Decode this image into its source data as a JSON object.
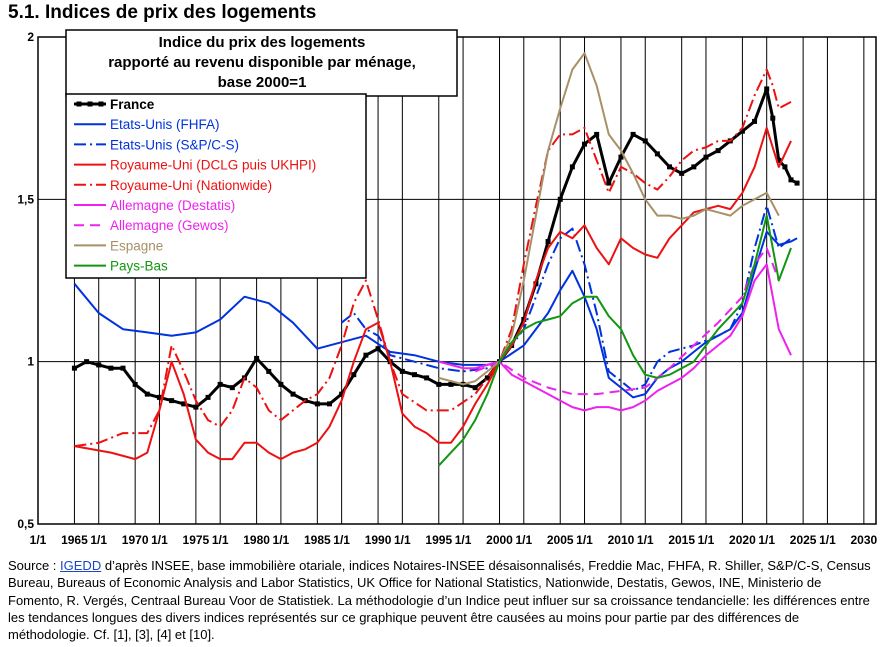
{
  "page_title": "5.1. Indices de prix des logements",
  "source": {
    "prefix": "Source : ",
    "link": "IGEDD",
    "text": " d’après INSEE, base immobilière otariale, indices Notaires-INSEE désaisonnalisés, Freddie Mac, FHFA, R. Shiller, S&P/C-S, Census Bureau, Bureaus of Economic Analysis and Labor Statistics, UK Office for National Statistics, Nationwide, Destatis, Gewos, INE, Ministerio de Fomento, R. Vergés, Centraal Bureau Voor de Statistiek.  La méthodologie d’un Indice peut influer sur sa croissance tendancielle: les différences entre les tendances longues des divers indices représentés sur ce graphique peuvent être causées au moins pour partie par des différences de méthodologie. Cf. [1], [3], [4] et [10]."
  },
  "chart_data": {
    "type": "line",
    "title_lines": [
      "Indice du prix des logements",
      "rapporté au revenu disponible par ménage,",
      "base 2000=1"
    ],
    "ylim": [
      0.5,
      2
    ],
    "xlim": [
      1962,
      2031
    ],
    "y_ticks": [
      {
        "value": 0.5,
        "label": "0,5"
      },
      {
        "value": 1,
        "label": "1"
      },
      {
        "value": 1.5,
        "label": "1,5"
      },
      {
        "value": 2,
        "label": "2"
      }
    ],
    "x_ticks": [
      {
        "value": 1962,
        "label": "1/1"
      },
      {
        "value": 1965,
        "label": "1965"
      },
      {
        "value": 1967,
        "label": "1/1"
      },
      {
        "value": 1970,
        "label": "1970"
      },
      {
        "value": 1972,
        "label": "1/1"
      },
      {
        "value": 1975,
        "label": "1975"
      },
      {
        "value": 1977,
        "label": "1/1"
      },
      {
        "value": 1980,
        "label": "1980"
      },
      {
        "value": 1982,
        "label": "1/1"
      },
      {
        "value": 1985,
        "label": "1985"
      },
      {
        "value": 1987,
        "label": "1/1"
      },
      {
        "value": 1990,
        "label": "1990"
      },
      {
        "value": 1992,
        "label": "1/1"
      },
      {
        "value": 1995,
        "label": "1995"
      },
      {
        "value": 1997,
        "label": "1/1"
      },
      {
        "value": 2000,
        "label": "2000"
      },
      {
        "value": 2002,
        "label": "1/1"
      },
      {
        "value": 2005,
        "label": "2005"
      },
      {
        "value": 2007,
        "label": "1/1"
      },
      {
        "value": 2010,
        "label": "2010"
      },
      {
        "value": 2012,
        "label": "1/1"
      },
      {
        "value": 2015,
        "label": "2015"
      },
      {
        "value": 2017,
        "label": "1/1"
      },
      {
        "value": 2020,
        "label": "2020"
      },
      {
        "value": 2022,
        "label": "1/1"
      },
      {
        "value": 2025,
        "label": "2025"
      },
      {
        "value": 2027,
        "label": "1/1"
      },
      {
        "value": 2030,
        "label": "2030"
      }
    ],
    "series": [
      {
        "name": "France",
        "color": "#000000",
        "dash": "",
        "width": 3,
        "markers": true,
        "x": [
          1965,
          1966,
          1967,
          1968,
          1969,
          1970,
          1971,
          1972,
          1973,
          1974,
          1975,
          1976,
          1977,
          1978,
          1979,
          1980,
          1981,
          1982,
          1983,
          1984,
          1985,
          1986,
          1987,
          1988,
          1989,
          1990,
          1991,
          1992,
          1993,
          1994,
          1995,
          1996,
          1997,
          1998,
          1999,
          2000,
          2001,
          2002,
          2003,
          2004,
          2005,
          2006,
          2007,
          2008,
          2009,
          2010,
          2011,
          2012,
          2013,
          2014,
          2015,
          2016,
          2017,
          2018,
          2019,
          2020,
          2021,
          2022,
          2022.5,
          2023,
          2023.5,
          2024,
          2024.5
        ],
        "y": [
          0.98,
          1.0,
          0.99,
          0.98,
          0.98,
          0.93,
          0.9,
          0.89,
          0.88,
          0.87,
          0.86,
          0.89,
          0.93,
          0.92,
          0.95,
          1.01,
          0.97,
          0.93,
          0.9,
          0.88,
          0.87,
          0.87,
          0.9,
          0.96,
          1.02,
          1.04,
          1.0,
          0.97,
          0.96,
          0.95,
          0.93,
          0.93,
          0.93,
          0.92,
          0.95,
          1.0,
          1.05,
          1.13,
          1.24,
          1.37,
          1.5,
          1.6,
          1.67,
          1.7,
          1.55,
          1.63,
          1.7,
          1.68,
          1.64,
          1.6,
          1.58,
          1.6,
          1.63,
          1.65,
          1.68,
          1.71,
          1.74,
          1.84,
          1.75,
          1.62,
          1.6,
          1.56,
          1.55
        ]
      },
      {
        "name": "Etats-Unis (FHFA)",
        "color": "#0033dd",
        "dash": "",
        "width": 2,
        "markers": false,
        "x": [
          1965,
          1967,
          1969,
          1971,
          1973,
          1975,
          1977,
          1979,
          1981,
          1983,
          1985,
          1987,
          1989,
          1991,
          1993,
          1995,
          1997,
          1999,
          2000,
          2002,
          2004,
          2005,
          2006,
          2007,
          2008,
          2009,
          2010,
          2011,
          2012,
          2013,
          2014,
          2015,
          2016,
          2017,
          2018,
          2019,
          2020,
          2021,
          2022,
          2023,
          2024,
          2024.5
        ],
        "y": [
          1.24,
          1.15,
          1.1,
          1.09,
          1.08,
          1.09,
          1.13,
          1.2,
          1.18,
          1.12,
          1.04,
          1.06,
          1.08,
          1.03,
          1.02,
          1.0,
          0.99,
          0.99,
          1.0,
          1.05,
          1.15,
          1.22,
          1.28,
          1.2,
          1.1,
          0.95,
          0.92,
          0.89,
          0.9,
          0.95,
          0.98,
          1.0,
          1.03,
          1.06,
          1.08,
          1.1,
          1.15,
          1.28,
          1.4,
          1.36,
          1.37,
          1.38
        ]
      },
      {
        "name": "Etats-Unis (S&P/C-S)",
        "color": "#0033dd",
        "dash": "12,4,2,4",
        "width": 2,
        "markers": false,
        "x": [
          1987,
          1988,
          1989,
          1990,
          1991,
          1993,
          1995,
          1997,
          1999,
          2000,
          2002,
          2004,
          2005,
          2006,
          2007,
          2008,
          2009,
          2010,
          2011,
          2012,
          2013,
          2014,
          2016,
          2018,
          2019,
          2020,
          2021,
          2022,
          2023,
          2024
        ],
        "y": [
          1.12,
          1.15,
          1.1,
          1.08,
          1.02,
          1.0,
          0.98,
          0.97,
          0.98,
          1.0,
          1.1,
          1.3,
          1.38,
          1.41,
          1.3,
          1.15,
          0.97,
          0.94,
          0.91,
          0.93,
          1.0,
          1.03,
          1.05,
          1.08,
          1.1,
          1.18,
          1.35,
          1.48,
          1.35,
          1.38
        ]
      },
      {
        "name": "Royaume-Uni (DCLG puis UKHPI)",
        "color": "#ee1111",
        "dash": "",
        "width": 2,
        "markers": false,
        "x": [
          1965,
          1968,
          1970,
          1971,
          1972,
          1973,
          1974,
          1975,
          1976,
          1977,
          1978,
          1979,
          1980,
          1981,
          1982,
          1983,
          1984,
          1985,
          1986,
          1987,
          1988,
          1989,
          1990,
          1991,
          1992,
          1993,
          1994,
          1995,
          1996,
          1997,
          1998,
          1999,
          2000,
          2001,
          2002,
          2003,
          2004,
          2005,
          2006,
          2007,
          2008,
          2009,
          2010,
          2011,
          2012,
          2013,
          2014,
          2015,
          2016,
          2017,
          2018,
          2019,
          2020,
          2021,
          2022,
          2023,
          2024
        ],
        "y": [
          0.74,
          0.72,
          0.7,
          0.72,
          0.85,
          1.0,
          0.9,
          0.76,
          0.72,
          0.7,
          0.7,
          0.75,
          0.75,
          0.72,
          0.7,
          0.72,
          0.73,
          0.75,
          0.8,
          0.88,
          1.0,
          1.1,
          1.12,
          1.0,
          0.84,
          0.8,
          0.78,
          0.75,
          0.75,
          0.8,
          0.87,
          0.93,
          1.0,
          1.05,
          1.12,
          1.25,
          1.35,
          1.4,
          1.38,
          1.42,
          1.35,
          1.3,
          1.38,
          1.35,
          1.33,
          1.32,
          1.38,
          1.42,
          1.46,
          1.47,
          1.48,
          1.47,
          1.52,
          1.6,
          1.72,
          1.6,
          1.68
        ]
      },
      {
        "name": "Royaume-Uni (Nationwide)",
        "color": "#ee1111",
        "dash": "12,4,2,4",
        "width": 2,
        "markers": false,
        "x": [
          1965,
          1967,
          1969,
          1971,
          1972,
          1973,
          1974,
          1975,
          1976,
          1977,
          1978,
          1979,
          1980,
          1981,
          1982,
          1983,
          1984,
          1985,
          1986,
          1987,
          1988,
          1989,
          1990,
          1991,
          1992,
          1994,
          1996,
          1998,
          2000,
          2001,
          2002,
          2003,
          2004,
          2005,
          2006,
          2007,
          2008,
          2009,
          2010,
          2011,
          2012,
          2013,
          2014,
          2015,
          2016,
          2017,
          2018,
          2019,
          2020,
          2021,
          2022,
          2022.5,
          2023,
          2024
        ],
        "y": [
          0.74,
          0.75,
          0.78,
          0.78,
          0.85,
          1.05,
          0.97,
          0.88,
          0.82,
          0.8,
          0.85,
          0.95,
          0.92,
          0.85,
          0.82,
          0.85,
          0.88,
          0.9,
          0.95,
          1.05,
          1.18,
          1.25,
          1.13,
          1.0,
          0.9,
          0.85,
          0.85,
          0.9,
          1.0,
          1.1,
          1.3,
          1.48,
          1.65,
          1.7,
          1.7,
          1.72,
          1.62,
          1.52,
          1.6,
          1.58,
          1.55,
          1.53,
          1.57,
          1.62,
          1.65,
          1.66,
          1.68,
          1.68,
          1.72,
          1.82,
          1.9,
          1.85,
          1.78,
          1.8
        ]
      },
      {
        "name": "Allemagne (Destatis)",
        "color": "#ee22ee",
        "dash": "",
        "width": 2,
        "markers": false,
        "x": [
          1995,
          1996,
          1997,
          1998,
          1999,
          2000,
          2001,
          2002,
          2003,
          2004,
          2005,
          2006,
          2007,
          2008,
          2009,
          2010,
          2011,
          2012,
          2013,
          2014,
          2015,
          2016,
          2017,
          2018,
          2019,
          2020,
          2021,
          2022,
          2023,
          2024
        ],
        "y": [
          1.0,
          0.99,
          0.98,
          0.98,
          0.99,
          1.0,
          0.96,
          0.94,
          0.92,
          0.9,
          0.88,
          0.86,
          0.85,
          0.86,
          0.86,
          0.85,
          0.86,
          0.88,
          0.91,
          0.93,
          0.95,
          0.98,
          1.02,
          1.05,
          1.08,
          1.14,
          1.25,
          1.3,
          1.1,
          1.02
        ]
      },
      {
        "name": "Allemagne (Gewos)",
        "color": "#ee22ee",
        "dash": "10,6",
        "width": 2,
        "markers": false,
        "x": [
          1998,
          2000,
          2002,
          2004,
          2006,
          2008,
          2010,
          2012,
          2014,
          2016,
          2018,
          2020,
          2021,
          2022,
          2023
        ],
        "y": [
          0.97,
          1.0,
          0.95,
          0.92,
          0.9,
          0.9,
          0.91,
          0.92,
          0.98,
          1.05,
          1.12,
          1.2,
          1.3,
          1.35,
          1.25
        ]
      },
      {
        "name": "Espagne",
        "color": "#a89068",
        "dash": "",
        "width": 2,
        "markers": false,
        "x": [
          1995,
          1996,
          1997,
          1998,
          1999,
          2000,
          2001,
          2002,
          2003,
          2004,
          2005,
          2006,
          2007,
          2008,
          2009,
          2010,
          2011,
          2012,
          2013,
          2014,
          2015,
          2016,
          2017,
          2018,
          2019,
          2020,
          2021,
          2022,
          2023
        ],
        "y": [
          0.95,
          0.94,
          0.93,
          0.94,
          0.97,
          1.0,
          1.08,
          1.25,
          1.45,
          1.65,
          1.78,
          1.9,
          1.95,
          1.85,
          1.7,
          1.65,
          1.58,
          1.5,
          1.45,
          1.45,
          1.44,
          1.45,
          1.47,
          1.46,
          1.45,
          1.48,
          1.5,
          1.52,
          1.45
        ]
      },
      {
        "name": "Pays-Bas",
        "color": "#129612",
        "dash": "",
        "width": 2,
        "markers": false,
        "x": [
          1995,
          1996,
          1997,
          1998,
          1999,
          2000,
          2001,
          2002,
          2003,
          2004,
          2005,
          2006,
          2007,
          2008,
          2009,
          2010,
          2011,
          2012,
          2013,
          2014,
          2015,
          2016,
          2017,
          2018,
          2019,
          2020,
          2021,
          2022,
          2023,
          2024
        ],
        "y": [
          0.68,
          0.72,
          0.76,
          0.82,
          0.9,
          1.0,
          1.06,
          1.1,
          1.12,
          1.13,
          1.14,
          1.18,
          1.2,
          1.2,
          1.14,
          1.1,
          1.02,
          0.96,
          0.95,
          0.96,
          0.98,
          1.0,
          1.05,
          1.1,
          1.14,
          1.18,
          1.3,
          1.45,
          1.25,
          1.35
        ]
      }
    ]
  }
}
